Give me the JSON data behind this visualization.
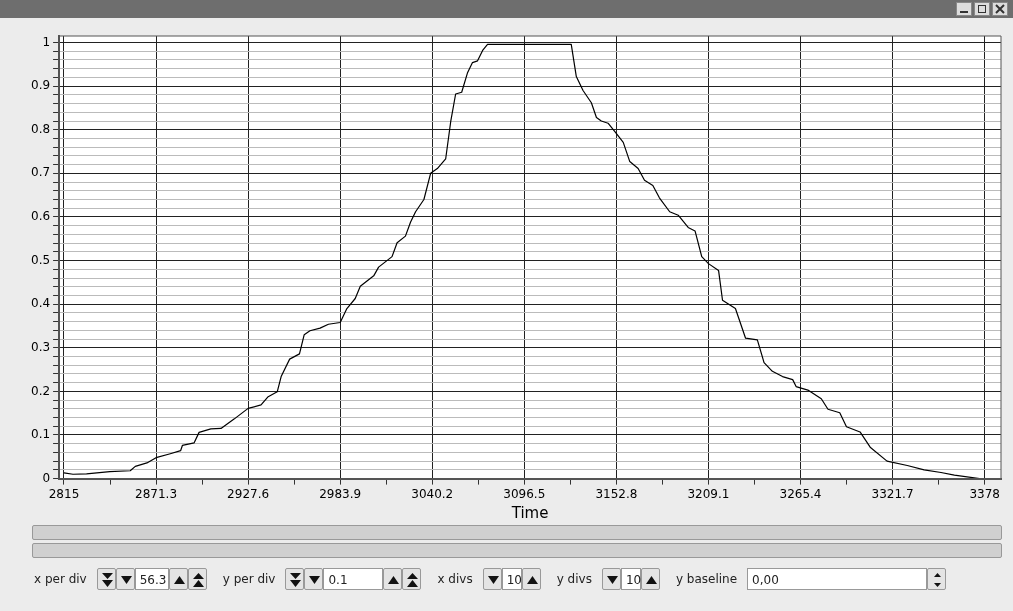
{
  "chart_data": {
    "type": "line",
    "xlabel": "Time",
    "color": "#000000",
    "x": [
      2815,
      2820.5,
      2828.8,
      2843,
      2855.5,
      2858.6,
      2865.7,
      2871.3,
      2880,
      2886.3,
      2887.4,
      2894.6,
      2897.6,
      2904.8,
      2911,
      2919.2,
      2927.6,
      2935.5,
      2939.6,
      2945.4,
      2947.8,
      2953,
      2959,
      2961.9,
      2965.4,
      2971.6,
      2976.7,
      2983.9,
      2988,
      2993.1,
      2996.2,
      3004.4,
      3007.4,
      3015.6,
      3018.7,
      3023.8,
      3026.9,
      3030,
      3035.1,
      3039.2,
      3043.3,
      3048.4,
      3051.5,
      3054.5,
      3058.2,
      3061.7,
      3064.8,
      3067.9,
      3071,
      3074,
      3125.2,
      3128.3,
      3132.4,
      3137.5,
      3140.6,
      3143.6,
      3147.7,
      3152,
      3157,
      3161,
      3166.1,
      3170,
      3175.1,
      3179.1,
      3185.4,
      3190.6,
      3196.7,
      3200.9,
      3205,
      3209.1,
      3215.3,
      3217.7,
      3225.6,
      3231.8,
      3239,
      3243.1,
      3248.2,
      3254.4,
      3260.6,
      3262.7,
      3269.9,
      3278.1,
      3282.2,
      3289.4,
      3293.5,
      3301.8,
      3308,
      3318.3,
      3330.7,
      3341,
      3351.3,
      3359.5,
      3374.9
    ],
    "values": [
      0.013,
      0.01,
      0.011,
      0.016,
      0.018,
      0.028,
      0.036,
      0.048,
      0.057,
      0.064,
      0.076,
      0.082,
      0.106,
      0.114,
      0.115,
      0.137,
      0.161,
      0.169,
      0.187,
      0.199,
      0.234,
      0.274,
      0.286,
      0.33,
      0.339,
      0.345,
      0.354,
      0.358,
      0.39,
      0.413,
      0.441,
      0.465,
      0.485,
      0.509,
      0.541,
      0.556,
      0.588,
      0.612,
      0.64,
      0.7,
      0.711,
      0.733,
      0.819,
      0.882,
      0.886,
      0.93,
      0.954,
      0.958,
      0.982,
      0.996,
      0.996,
      0.922,
      0.89,
      0.862,
      0.828,
      0.82,
      0.815,
      0.795,
      0.771,
      0.727,
      0.711,
      0.684,
      0.672,
      0.644,
      0.612,
      0.604,
      0.576,
      0.568,
      0.509,
      0.493,
      0.477,
      0.409,
      0.39,
      0.322,
      0.318,
      0.266,
      0.246,
      0.234,
      0.227,
      0.211,
      0.203,
      0.183,
      0.159,
      0.151,
      0.119,
      0.107,
      0.072,
      0.04,
      0.03,
      0.02,
      0.014,
      0.008,
      0
    ],
    "xlim": [
      2812,
      3388
    ],
    "xticks": [
      2815,
      {
        "value": 2843.15,
        "label": null
      },
      2871.3,
      {
        "value": 2899.45,
        "label": null
      },
      2927.6,
      {
        "value": 2955.75,
        "label": null
      },
      2983.9,
      {
        "value": 3012.05,
        "label": null
      },
      3040.2,
      {
        "value": 3068.35,
        "label": null
      },
      3096.5,
      {
        "value": 3124.65,
        "label": null
      },
      3152.8,
      {
        "value": 3180.95,
        "label": null
      },
      3209.1,
      {
        "value": 3237.25,
        "label": null
      },
      3265.4,
      {
        "value": 3293.55,
        "label": null
      },
      3321.7,
      {
        "value": 3349.85,
        "label": null
      },
      3378
    ],
    "ylim": [
      0,
      1.015
    ],
    "yticks": [
      0,
      {
        "value": 0.02,
        "label": null
      },
      {
        "value": 0.04,
        "label": null
      },
      {
        "value": 0.06,
        "label": null
      },
      {
        "value": 0.08,
        "label": null
      },
      0.1,
      {
        "value": 0.12,
        "label": null
      },
      {
        "value": 0.14,
        "label": null
      },
      {
        "value": 0.16,
        "label": null
      },
      {
        "value": 0.18,
        "label": null
      },
      0.2,
      {
        "value": 0.22,
        "label": null
      },
      {
        "value": 0.24,
        "label": null
      },
      {
        "value": 0.26,
        "label": null
      },
      {
        "value": 0.28,
        "label": null
      },
      0.3,
      {
        "value": 0.32,
        "label": null
      },
      {
        "value": 0.34,
        "label": null
      },
      {
        "value": 0.36,
        "label": null
      },
      {
        "value": 0.38,
        "label": null
      },
      0.4,
      {
        "value": 0.42,
        "label": null
      },
      {
        "value": 0.44,
        "label": null
      },
      {
        "value": 0.46,
        "label": null
      },
      {
        "value": 0.48,
        "label": null
      },
      0.5,
      {
        "value": 0.52,
        "label": null
      },
      {
        "value": 0.54,
        "label": null
      },
      {
        "value": 0.56,
        "label": null
      },
      {
        "value": 0.58,
        "label": null
      },
      0.6,
      {
        "value": 0.62,
        "label": null
      },
      {
        "value": 0.64,
        "label": null
      },
      {
        "value": 0.66,
        "label": null
      },
      {
        "value": 0.68,
        "label": null
      },
      0.7,
      {
        "value": 0.72,
        "label": null
      },
      {
        "value": 0.74,
        "label": null
      },
      {
        "value": 0.76,
        "label": null
      },
      {
        "value": 0.78,
        "label": null
      },
      0.8,
      {
        "value": 0.82,
        "label": null
      },
      {
        "value": 0.84,
        "label": null
      },
      {
        "value": 0.86,
        "label": null
      },
      {
        "value": 0.88,
        "label": null
      },
      0.9,
      {
        "value": 0.92,
        "label": null
      },
      {
        "value": 0.94,
        "label": null
      },
      {
        "value": 0.96,
        "label": null
      },
      {
        "value": 0.98,
        "label": null
      },
      1
    ],
    "grid": true,
    "legend": false,
    "marker": "none",
    "line_style": "solid",
    "annotations": [
      "x per div",
      "56.3",
      "y per div",
      "0.1",
      "x divs",
      "10",
      "y divs",
      "10",
      "y baseline",
      "0,00"
    ]
  }
}
